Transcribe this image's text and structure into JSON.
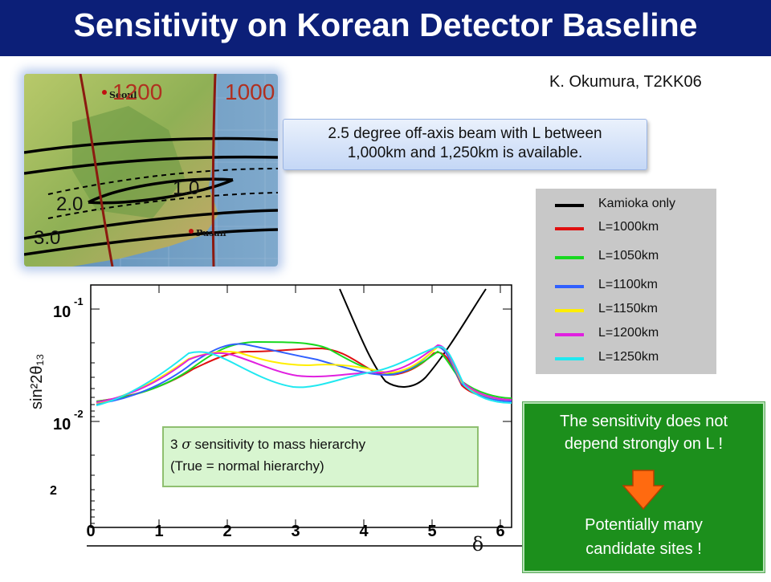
{
  "title": "Sensitivity on Korean Detector Baseline",
  "credit": "K. Okumura, T2KK06",
  "map": {
    "labels": [
      "1200",
      "1000",
      "1.0",
      "2.0",
      "3.0"
    ],
    "cities": [
      "Seoul",
      "Pusan"
    ]
  },
  "callout": {
    "line1": "2.5 degree off-axis beam with L between",
    "line2": "1,000km and 1,250km is available."
  },
  "legend": [
    {
      "label": "Kamioka only",
      "color": "#000000"
    },
    {
      "label": "L=1000km",
      "color": "#e01010"
    },
    {
      "label": "L=1050km",
      "color": "#18d820"
    },
    {
      "label": "L=1100km",
      "color": "#3060ff"
    },
    {
      "label": "L=1150km",
      "color": "#ffee00"
    },
    {
      "label": "L=1200km",
      "color": "#e020e0"
    },
    {
      "label": "L=1250km",
      "color": "#20e8f0"
    }
  ],
  "plot": {
    "ylabel": "sin²2θ₁₃",
    "xlabel": "δ",
    "xticks": [
      "0",
      "1",
      "2",
      "3",
      "4",
      "5",
      "6"
    ],
    "ytick_base": "10",
    "ytick_exps": [
      "-1",
      "-2"
    ],
    "extra_label": "2"
  },
  "note": {
    "sigma": "σ",
    "line1_pre": "3",
    "line1_post": "sensitivity to mass hierarchy",
    "line2": "(True = normal hierarchy)"
  },
  "greenbox": {
    "line1": "The sensitivity does not",
    "line2": "depend strongly on L !",
    "line3": "Potentially many",
    "line4": "candidate sites !"
  }
}
